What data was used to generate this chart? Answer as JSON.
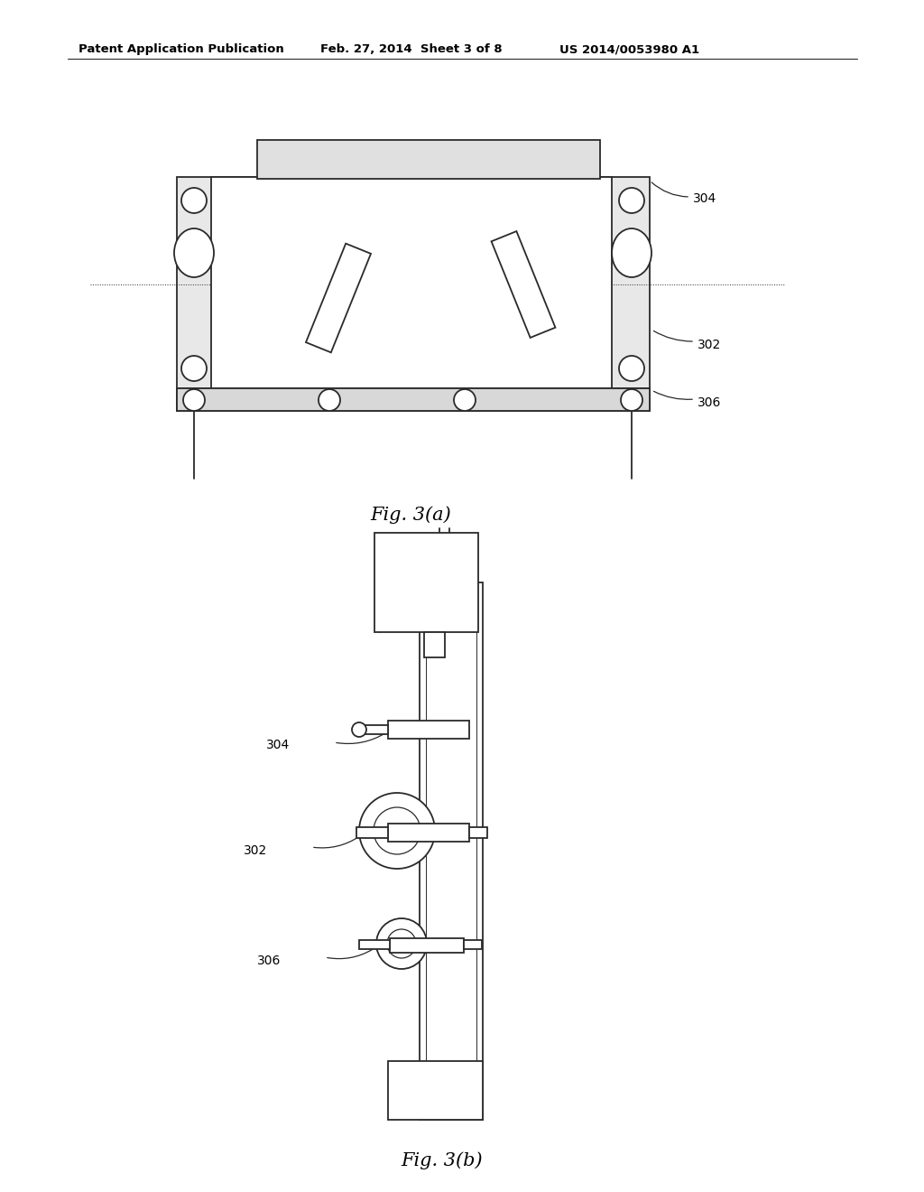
{
  "bg_color": "#ffffff",
  "line_color": "#2a2a2a",
  "header_text1": "Patent Application Publication",
  "header_text2": "Feb. 27, 2014  Sheet 3 of 8",
  "header_text3": "US 2014/0053980 A1",
  "fig_a_label": "Fig. 3(a)",
  "fig_b_label": "Fig. 3(b)",
  "label_304": "304",
  "label_302": "302",
  "label_306": "306"
}
